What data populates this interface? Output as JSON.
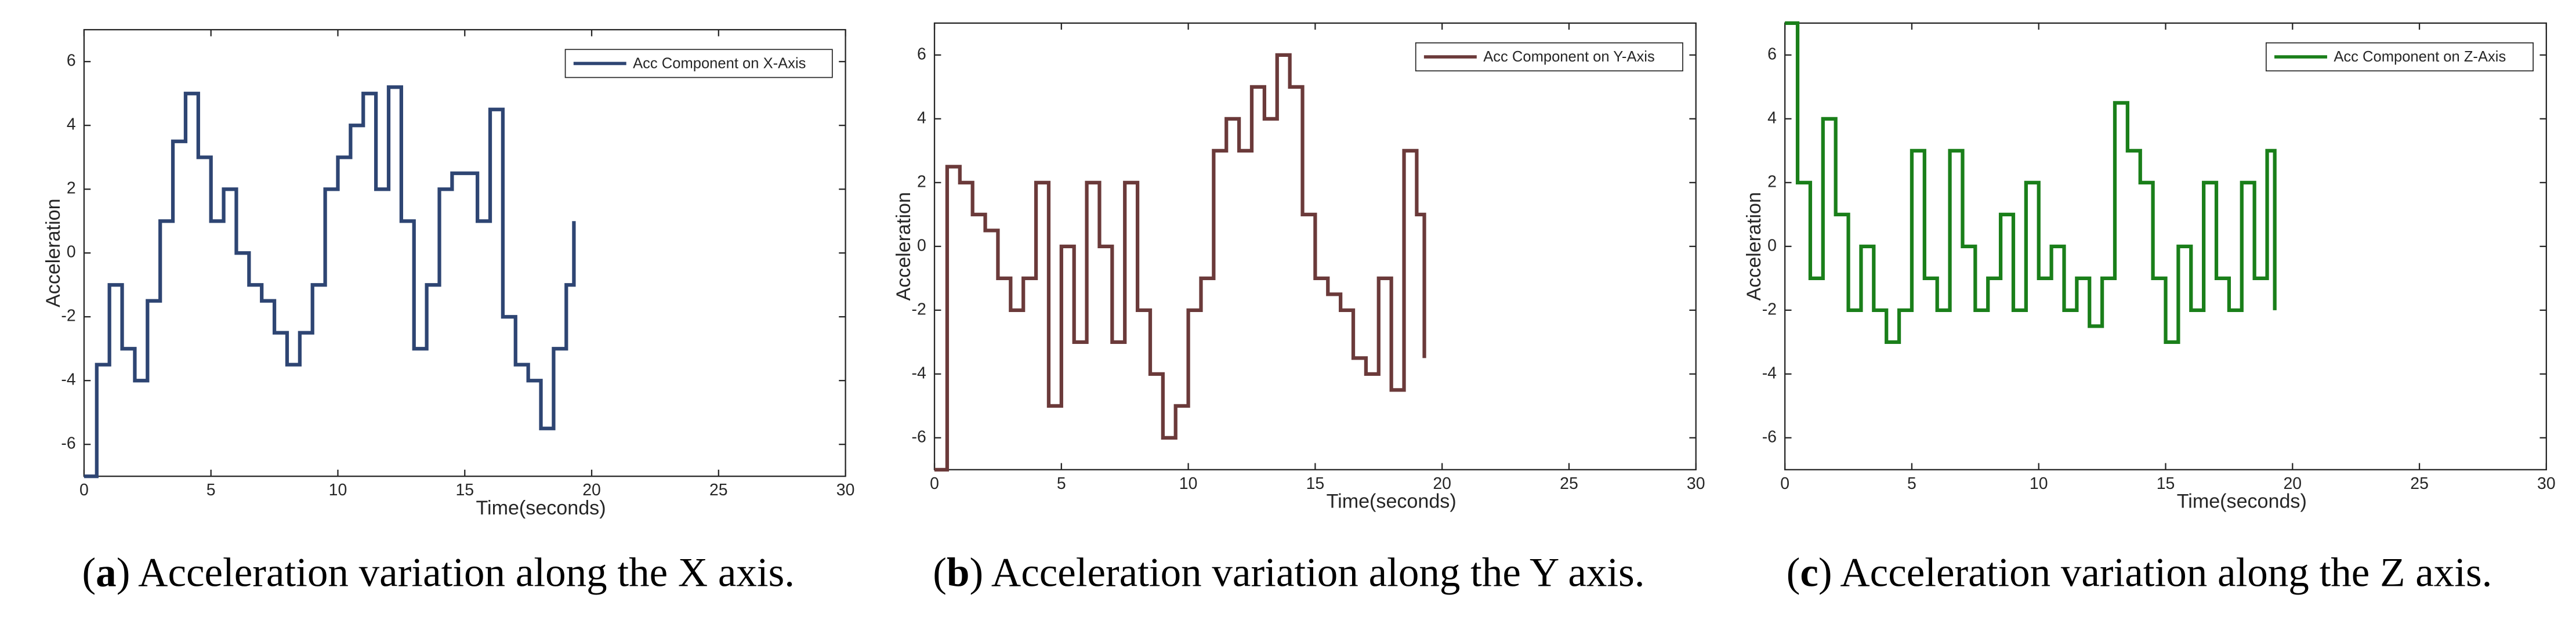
{
  "chart_data": [
    {
      "type": "line",
      "xlabel": "Time(seconds)",
      "ylabel": "Acceleration",
      "caption": [
        "(",
        "a",
        ") Acceleration variation along the X axis."
      ],
      "x": [
        0,
        0.5,
        1,
        1.5,
        2,
        2.5,
        3,
        3.5,
        4,
        4.5,
        5,
        5.5,
        6,
        6.5,
        7,
        7.5,
        8,
        8.5,
        9,
        9.5,
        10,
        10.5,
        11,
        11.5,
        12,
        12.5,
        13,
        13.5,
        14,
        14.5,
        15,
        15.5,
        16,
        16.5,
        17,
        17.5,
        18,
        18.5,
        19,
        19.3
      ],
      "series": [
        {
          "name": "Acc Component on X-Axis",
          "color": "#2e4573",
          "values": [
            -7,
            -3.5,
            -1,
            -3,
            -4,
            -1.5,
            1,
            3.5,
            5,
            3,
            1,
            2,
            0,
            -1,
            -1.5,
            -2.5,
            -3.5,
            -2.5,
            -1,
            2,
            3,
            4,
            5,
            2,
            5.2,
            1,
            -3,
            -1,
            2,
            2.5,
            2.5,
            1,
            4.5,
            -2,
            -3.5,
            -4,
            -5.5,
            -3,
            -1,
            1
          ]
        }
      ],
      "xlim": [
        0,
        30
      ],
      "ylim": [
        -7,
        7
      ],
      "xticks": [
        0,
        5,
        10,
        15,
        20,
        25,
        30
      ],
      "yticks": [
        -6,
        -4,
        -2,
        0,
        2,
        4,
        6
      ],
      "legend": "upper right"
    },
    {
      "type": "line",
      "xlabel": "Time(seconds)",
      "ylabel": "Acceleration",
      "caption": [
        "(",
        "b",
        ") Acceleration variation along the Y axis."
      ],
      "x": [
        0,
        0.5,
        1,
        1.5,
        2,
        2.5,
        3,
        3.5,
        4,
        4.5,
        5,
        5.5,
        6,
        6.5,
        7,
        7.5,
        8,
        8.5,
        9,
        9.5,
        10,
        10.5,
        11,
        11.5,
        12,
        12.5,
        13,
        13.5,
        14,
        14.5,
        15,
        15.5,
        16,
        16.5,
        17,
        17.5,
        18,
        18.5,
        19,
        19.3
      ],
      "series": [
        {
          "name": "Acc Component on Y-Axis",
          "color": "#6b3a3a",
          "values": [
            -7,
            2.5,
            2,
            1,
            0.5,
            -1,
            -2,
            -1,
            2,
            -5,
            0,
            -3,
            2,
            0,
            -3,
            2,
            -2,
            -4,
            -6,
            -5,
            -2,
            -1,
            3,
            4,
            3,
            5,
            4,
            6,
            5,
            1,
            -1,
            -1.5,
            -2,
            -3.5,
            -4,
            -1,
            -4.5,
            3,
            1,
            -3.5
          ]
        }
      ],
      "xlim": [
        0,
        30
      ],
      "ylim": [
        -7,
        7
      ],
      "xticks": [
        0,
        5,
        10,
        15,
        20,
        25,
        30
      ],
      "yticks": [
        -6,
        -4,
        -2,
        0,
        2,
        4,
        6
      ],
      "legend": "upper right"
    },
    {
      "type": "line",
      "xlabel": "Time(seconds)",
      "ylabel": "Acceleration",
      "caption": [
        "(",
        "c",
        ") Acceleration variation along the Z axis."
      ],
      "x": [
        0,
        0.5,
        1,
        1.5,
        2,
        2.5,
        3,
        3.5,
        4,
        4.5,
        5,
        5.5,
        6,
        6.5,
        7,
        7.5,
        8,
        8.5,
        9,
        9.5,
        10,
        10.5,
        11,
        11.5,
        12,
        12.5,
        13,
        13.5,
        14,
        14.5,
        15,
        15.5,
        16,
        16.5,
        17,
        17.5,
        18,
        18.5,
        19,
        19.3
      ],
      "series": [
        {
          "name": "Acc Component on Z-Axis",
          "color": "#1a7f1a",
          "values": [
            7,
            2,
            -1,
            4,
            1,
            -2,
            0,
            -2,
            -3,
            -2,
            3,
            -1,
            -2,
            3,
            0,
            -2,
            -1,
            1,
            -2,
            2,
            -1,
            0,
            -2,
            -1,
            -2.5,
            -1,
            4.5,
            3,
            2,
            -1,
            -3,
            0,
            -2,
            2,
            -1,
            -2,
            2,
            -1,
            3,
            -2
          ]
        }
      ],
      "xlim": [
        0,
        30
      ],
      "ylim": [
        -7,
        7
      ],
      "xticks": [
        0,
        5,
        10,
        15,
        20,
        25,
        30
      ],
      "yticks": [
        -6,
        -4,
        -2,
        0,
        2,
        4,
        6
      ],
      "legend": "upper right"
    }
  ]
}
